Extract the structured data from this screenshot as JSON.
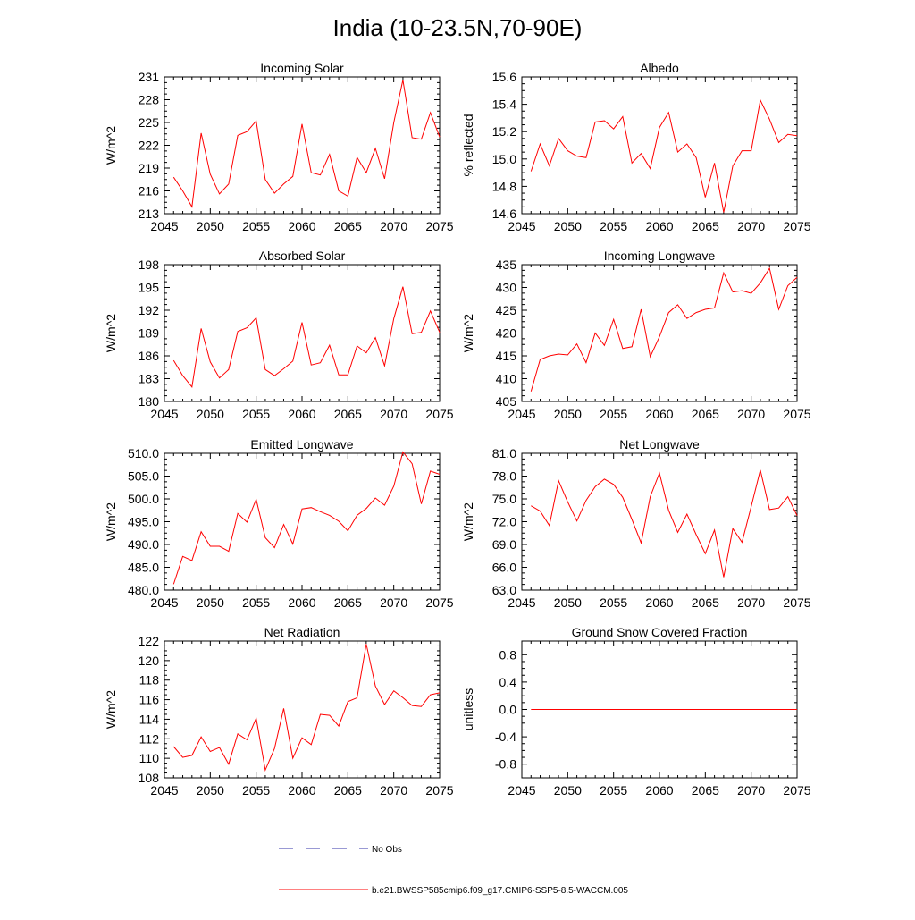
{
  "title": "India (10-23.5N,70-90E)",
  "colors": {
    "series": "#ff0000",
    "obs": "#3333aa",
    "axes": "#000000"
  },
  "x_ticks": [
    2045,
    2050,
    2055,
    2060,
    2065,
    2070,
    2075
  ],
  "x_range": [
    2045,
    2075
  ],
  "years": [
    2046,
    2047,
    2048,
    2049,
    2050,
    2051,
    2052,
    2053,
    2054,
    2055,
    2056,
    2057,
    2058,
    2059,
    2060,
    2061,
    2062,
    2063,
    2064,
    2065,
    2066,
    2067,
    2068,
    2069,
    2070,
    2071,
    2072,
    2073,
    2074,
    2075
  ],
  "legend": {
    "obs_label": "No Obs",
    "model_label": "b.e21.BWSSP585cmip6.f09_g17.CMIP6-SSP5-8.5-WACCM.005"
  },
  "chart_data": [
    {
      "type": "line",
      "title": "Incoming Solar",
      "ylabel": "W/m^2",
      "ylim": [
        213,
        231
      ],
      "yticks": [
        "213",
        "216",
        "219",
        "222",
        "225",
        "228",
        "231"
      ],
      "values": [
        217.8,
        216.0,
        213.9,
        223.6,
        218.2,
        215.6,
        216.9,
        223.3,
        223.8,
        225.2,
        217.5,
        215.7,
        216.9,
        217.9,
        224.8,
        218.4,
        218.1,
        220.8,
        216.0,
        215.3,
        220.4,
        218.4,
        221.6,
        217.6,
        225.0,
        230.6,
        223.0,
        222.8,
        226.3,
        223.1
      ]
    },
    {
      "type": "line",
      "title": "Albedo",
      "ylabel": "% reflected",
      "ylim": [
        14.6,
        15.6
      ],
      "yticks": [
        "14.6",
        "14.8",
        "15.0",
        "15.2",
        "15.4",
        "15.6"
      ],
      "values": [
        14.91,
        15.11,
        14.95,
        15.15,
        15.06,
        15.02,
        15.01,
        15.27,
        15.28,
        15.22,
        15.31,
        14.97,
        15.04,
        14.93,
        15.23,
        15.34,
        15.05,
        15.11,
        15.01,
        14.72,
        14.97,
        14.61,
        14.95,
        15.06,
        15.06,
        15.43,
        15.29,
        15.12,
        15.18,
        15.17
      ]
    },
    {
      "type": "line",
      "title": "Absorbed Solar",
      "ylabel": "W/m^2",
      "ylim": [
        180,
        198
      ],
      "yticks": [
        "180",
        "183",
        "186",
        "189",
        "192",
        "195",
        "198"
      ],
      "values": [
        185.4,
        183.4,
        181.9,
        189.6,
        185.2,
        183.1,
        184.2,
        189.2,
        189.7,
        191.0,
        184.2,
        183.4,
        184.3,
        185.3,
        190.4,
        184.8,
        185.1,
        187.4,
        183.5,
        183.5,
        187.3,
        186.4,
        188.4,
        184.7,
        190.9,
        195.1,
        188.9,
        189.1,
        191.9,
        189.1
      ]
    },
    {
      "type": "line",
      "title": "Incoming Longwave",
      "ylabel": "W/m^2",
      "ylim": [
        405,
        435
      ],
      "yticks": [
        "405",
        "410",
        "415",
        "420",
        "425",
        "430",
        "435"
      ],
      "values": [
        407.2,
        414.2,
        415.0,
        415.4,
        415.2,
        417.6,
        413.5,
        420.0,
        417.3,
        423.0,
        416.6,
        417.0,
        425.2,
        414.8,
        419.2,
        424.5,
        426.2,
        423.2,
        424.5,
        425.2,
        425.5,
        433.2,
        429.0,
        429.3,
        428.7,
        431.0,
        434.2,
        425.2,
        430.4,
        432.2
      ]
    },
    {
      "type": "line",
      "title": "Emitted Longwave",
      "ylabel": "W/m^2",
      "ylim": [
        480.0,
        510.0
      ],
      "yticks": [
        "480.0",
        "485.0",
        "490.0",
        "495.0",
        "500.0",
        "505.0",
        "510.0"
      ],
      "values": [
        481.3,
        487.4,
        486.5,
        492.8,
        489.6,
        489.6,
        488.5,
        496.8,
        494.9,
        499.9,
        491.5,
        489.3,
        494.4,
        490.1,
        497.8,
        498.1,
        497.2,
        496.4,
        495.1,
        493.0,
        496.4,
        497.9,
        500.2,
        498.6,
        502.8,
        510.3,
        507.7,
        498.9,
        506.1,
        505.4
      ]
    },
    {
      "type": "line",
      "title": "Net Longwave",
      "ylabel": "W/m^2",
      "ylim": [
        63.0,
        81.0
      ],
      "yticks": [
        "63.0",
        "66.0",
        "69.0",
        "72.0",
        "75.0",
        "78.0",
        "81.0"
      ],
      "values": [
        74.1,
        73.4,
        71.5,
        77.4,
        74.6,
        72.1,
        74.8,
        76.6,
        77.6,
        76.9,
        75.2,
        72.3,
        69.2,
        75.3,
        78.4,
        73.5,
        70.6,
        73.0,
        70.3,
        67.8,
        70.9,
        64.7,
        71.1,
        69.3,
        74.0,
        78.8,
        73.6,
        73.8,
        75.3,
        72.8
      ]
    },
    {
      "type": "line",
      "title": "Net Radiation",
      "ylabel": "W/m^2",
      "ylim": [
        108,
        122
      ],
      "yticks": [
        "108",
        "110",
        "112",
        "114",
        "116",
        "118",
        "120",
        "122"
      ],
      "values": [
        111.2,
        110.1,
        110.3,
        112.2,
        110.7,
        111.1,
        109.4,
        112.5,
        111.9,
        114.1,
        108.8,
        111.0,
        115.1,
        110.0,
        112.1,
        111.4,
        114.5,
        114.4,
        113.3,
        115.8,
        116.2,
        121.7,
        117.4,
        115.5,
        116.9,
        116.2,
        115.4,
        115.3,
        116.5,
        116.7
      ]
    },
    {
      "type": "line",
      "title": "Ground Snow Covered Fraction",
      "ylabel": "unitless",
      "ylim": [
        -1.0,
        1.0
      ],
      "yticks": [
        "-0.8",
        "-0.4",
        "0.0",
        "0.4",
        "0.8"
      ],
      "ytick_values": [
        -0.8,
        -0.4,
        0.0,
        0.4,
        0.8
      ],
      "values": [
        0,
        0,
        0,
        0,
        0,
        0,
        0,
        0,
        0,
        0,
        0,
        0,
        0,
        0,
        0,
        0,
        0,
        0,
        0,
        0,
        0,
        0,
        0,
        0,
        0,
        0,
        0,
        0,
        0,
        0
      ]
    }
  ]
}
